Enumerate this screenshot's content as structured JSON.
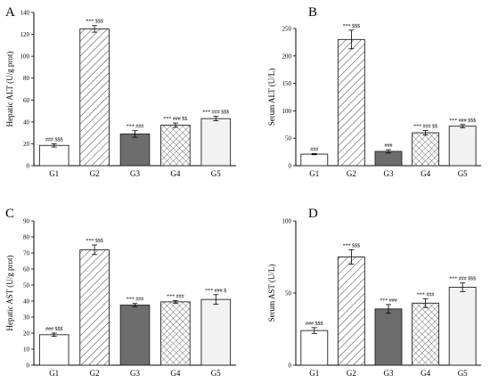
{
  "figure": {
    "colors": {
      "axis": "#000000",
      "bar_border": "#222222",
      "G1": "#ffffff",
      "G2": "#ffffff",
      "G3": "#6d6d6d",
      "G4": "#ffffff",
      "G5": "#f2f2f2"
    },
    "patterns": {
      "G1": "solid",
      "G2": "diagonal-hatch",
      "G3": "solid",
      "G4": "crosshatch",
      "G5": "solid"
    }
  },
  "chart_data": [
    {
      "panel": "A",
      "type": "bar",
      "categories": [
        "G1",
        "G2",
        "G3",
        "G4",
        "G5"
      ],
      "values": [
        18.5,
        125,
        29,
        37,
        43
      ],
      "errors": [
        1.5,
        3,
        3,
        2,
        2
      ],
      "annotations": [
        "### $$$",
        "***  $$$",
        "***  ###",
        "***  ###  $$",
        "***  ###  $$$"
      ],
      "ylabel": "Hepatic ALT  (U/g prot)",
      "ylim": [
        0,
        140
      ],
      "yticks": [
        0,
        20,
        40,
        60,
        80,
        100,
        120,
        140
      ]
    },
    {
      "panel": "B",
      "type": "bar",
      "categories": [
        "G1",
        "G2",
        "G3",
        "G4",
        "G5"
      ],
      "values": [
        21,
        230,
        26,
        60,
        72
      ],
      "errors": [
        1,
        17,
        3,
        4,
        3
      ],
      "annotations": [
        "###",
        "***  $$$",
        "###",
        "***  ###  $$",
        "***  ###  $$$"
      ],
      "ylabel": "Serum ALT  (U/L)",
      "ylim": [
        0,
        250
      ],
      "yticks": [
        0,
        50,
        100,
        150,
        200,
        250
      ]
    },
    {
      "panel": "C",
      "type": "bar",
      "categories": [
        "G1",
        "G2",
        "G3",
        "G4",
        "G5"
      ],
      "values": [
        19,
        72,
        37.5,
        39.5,
        41
      ],
      "errors": [
        1,
        3,
        1,
        0.8,
        3
      ],
      "annotations": [
        "### $$$",
        "***  $$$",
        "***  ###",
        "***  ###",
        "***  ###  $"
      ],
      "ylabel": "Hepatic AST  (U/g prot)",
      "ylim": [
        0,
        90
      ],
      "yticks": [
        0,
        10,
        20,
        30,
        40,
        50,
        60,
        70,
        80,
        90
      ]
    },
    {
      "panel": "D",
      "type": "bar",
      "categories": [
        "G1",
        "G2",
        "G3",
        "G4",
        "G5"
      ],
      "values": [
        24,
        75,
        39,
        43,
        54
      ],
      "errors": [
        2,
        5,
        3,
        3,
        3
      ],
      "annotations": [
        "### $$$",
        "***  $$$",
        "***  ###",
        "***  ###",
        "***  ###  $$$"
      ],
      "ylabel": "Serum AST  (U/L)",
      "ylim": [
        0,
        100
      ],
      "yticks": [
        0,
        50,
        100
      ]
    }
  ]
}
